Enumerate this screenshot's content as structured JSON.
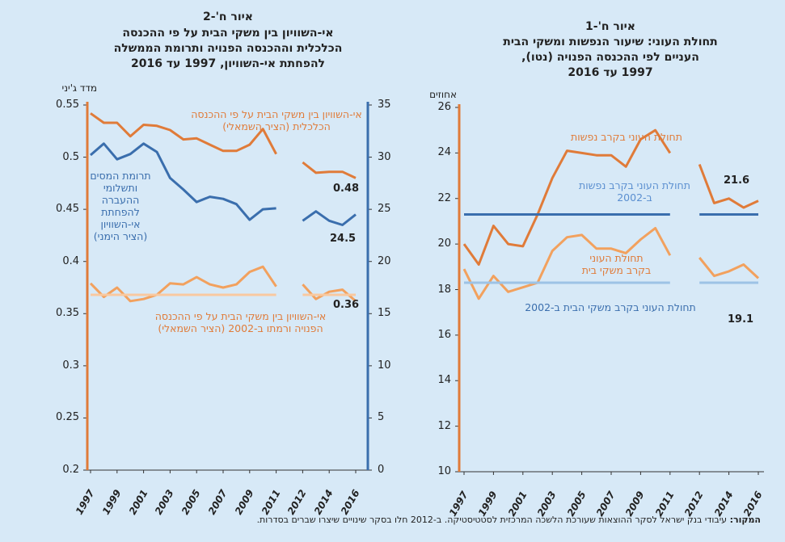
{
  "chart_data": [
    {
      "type": "line",
      "title": "איור ח'-1",
      "subtitle": [
        "תחולת העוני: שיעור הנפשות ומשקי הבית",
        "העניים לפי ההכנסה הפנויה (נטו),",
        "1997 עד 2016"
      ],
      "ylabel": "אחוזים",
      "categories": [
        "1997",
        null,
        "1999",
        null,
        "2001",
        null,
        "2003",
        null,
        "2005",
        null,
        "2007",
        null,
        "2009",
        null,
        "2011",
        null,
        "2012",
        null,
        "2014",
        null,
        "2016"
      ],
      "ylim": [
        10,
        26
      ],
      "yticks": [
        10,
        12,
        14,
        16,
        18,
        20,
        22,
        24,
        26
      ],
      "series": [
        {
          "name": "תחולת העוני בקרב נפשות",
          "color": "#e07b39",
          "values": [
            20.0,
            19.1,
            20.8,
            20.0,
            19.9,
            21.3,
            22.9,
            24.1,
            24.0,
            23.9,
            23.9,
            23.4,
            24.6,
            25.0,
            24.0,
            null,
            23.5,
            21.8,
            22.0,
            21.6,
            21.9
          ]
        },
        {
          "name": "תחולת העוני בקרב משקי בית",
          "color": "#f2a15e",
          "values": [
            18.9,
            17.6,
            18.6,
            17.9,
            18.1,
            18.3,
            19.7,
            20.3,
            20.4,
            19.8,
            19.8,
            19.6,
            20.2,
            20.7,
            19.5,
            null,
            19.4,
            18.6,
            18.8,
            19.1,
            18.5
          ]
        },
        {
          "name": "תחולת העוני בקרב נפשות ב-2002",
          "color": "#3a6ead",
          "values": [
            21.3,
            21.3,
            21.3,
            21.3,
            21.3,
            21.3,
            21.3,
            21.3,
            21.3,
            21.3,
            21.3,
            21.3,
            21.3,
            21.3,
            21.3,
            null,
            21.3,
            21.3,
            21.3,
            21.3,
            21.3
          ]
        },
        {
          "name": "תחולת העוני בקרב משקי הבית ב-2002",
          "color": "#9dc3e6",
          "values": [
            18.3,
            18.3,
            18.3,
            18.3,
            18.3,
            18.3,
            18.3,
            18.3,
            18.3,
            18.3,
            18.3,
            18.3,
            18.3,
            18.3,
            18.3,
            null,
            18.3,
            18.3,
            18.3,
            18.3,
            18.3
          ]
        }
      ],
      "annotations": [
        "21.6",
        "19.1"
      ]
    },
    {
      "type": "line",
      "title": "איור ח'-2",
      "subtitle": [
        "אי-השוויון בין משקי הבית על פי ההכנסה",
        "הכלכלית וההכנסה הפנויה ותרומת הממשלה",
        "להפחתת אי-השוויון, 1997 עד 2016"
      ],
      "ylabel": "מדד ג'יני",
      "categories": [
        "1997",
        null,
        "1999",
        null,
        "2001",
        null,
        "2003",
        null,
        "2005",
        null,
        "2007",
        null,
        "2009",
        null,
        "2011",
        null,
        "2012",
        null,
        "2014",
        null,
        "2016"
      ],
      "ylim": [
        0.2,
        0.55
      ],
      "yticks": [
        0.2,
        0.25,
        0.3,
        0.35,
        0.4,
        0.45,
        0.5,
        0.55
      ],
      "y2lim": [
        0,
        35
      ],
      "y2ticks": [
        0,
        5,
        10,
        15,
        20,
        25,
        30,
        35
      ],
      "series": [
        {
          "name": "אי-השוויון בין משקי הבית על פי ההכנסה הכלכלית (הציר השמאלי)",
          "color": "#e07b39",
          "values": [
            0.542,
            0.533,
            0.533,
            0.52,
            0.531,
            0.53,
            0.526,
            0.517,
            0.518,
            0.512,
            0.506,
            0.506,
            0.512,
            0.527,
            0.503,
            null,
            0.495,
            0.485,
            0.486,
            0.486,
            0.48
          ]
        },
        {
          "name": "תרומת המסים ותשלומי ההעברה להפחתת אי-השוויון (הציר הימני)",
          "color": "#3a6ead",
          "axis": "y2",
          "values": [
            30.2,
            31.3,
            29.8,
            30.3,
            31.3,
            30.5,
            28.0,
            26.9,
            25.7,
            26.2,
            26.0,
            25.5,
            24.0,
            25.0,
            25.1,
            null,
            23.9,
            24.8,
            23.9,
            23.5,
            24.5
          ]
        },
        {
          "name": "אי-השוויון בין משקי הבית על פי ההכנסה הפנויה ורמתו ב-2002 (הציר השמאלי)",
          "color": "#f2a15e",
          "values": [
            0.379,
            0.366,
            0.375,
            0.362,
            0.364,
            0.368,
            0.379,
            0.378,
            0.385,
            0.378,
            0.375,
            0.378,
            0.39,
            0.395,
            0.376,
            null,
            0.378,
            0.364,
            0.371,
            0.373,
            0.362
          ]
        },
        {
          "color": "#f8c9a0",
          "values": [
            0.368,
            0.368,
            0.368,
            0.368,
            0.368,
            0.368,
            0.368,
            0.368,
            0.368,
            0.368,
            0.368,
            0.368,
            0.368,
            0.368,
            0.368,
            null,
            0.368,
            0.368,
            0.368,
            0.368,
            0.368
          ]
        }
      ],
      "annotations": [
        "0.48",
        "24.5",
        "0.36"
      ]
    }
  ],
  "source": {
    "label": "המקור:",
    "text": "עיבודי בנק ישראל לסקר ההוצאות שעורכת הלשכה המרכזית לסטטיסטיקה. ב-2012 חלו בסקר שינויים שיצרו שברים בסדרות."
  }
}
